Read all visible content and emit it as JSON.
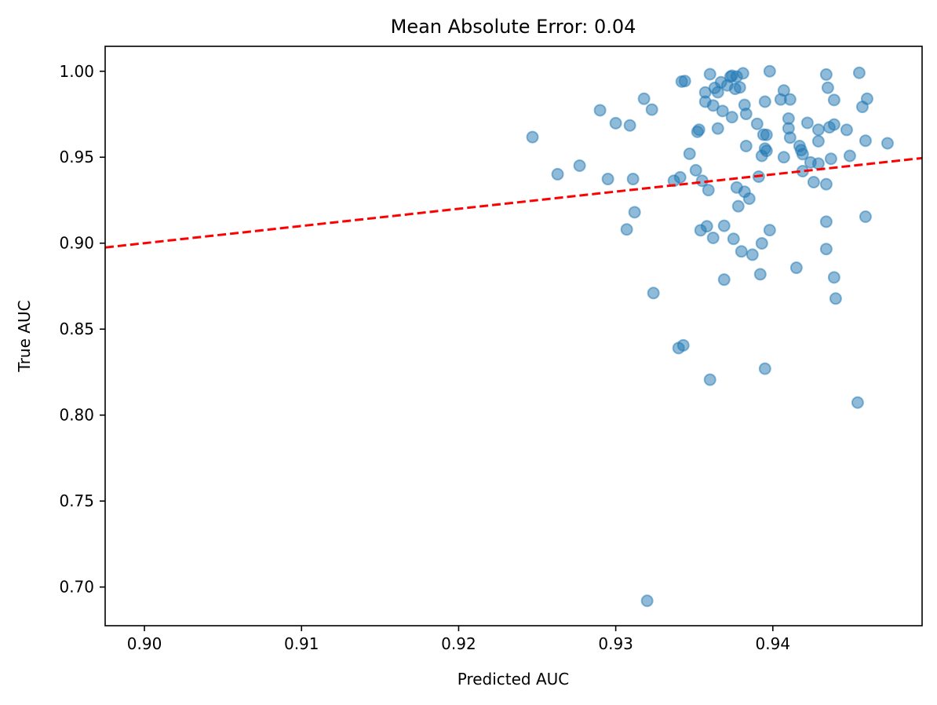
{
  "chart_data": {
    "type": "scatter",
    "title": "Mean Absolute Error: 0.04",
    "xlabel": "Predicted AUC",
    "ylabel": "True AUC",
    "xlim": [
      0.8975,
      0.9495
    ],
    "ylim": [
      0.6775,
      1.0145
    ],
    "xticks": [
      0.9,
      0.91,
      0.92,
      0.93,
      0.94
    ],
    "xtick_labels": [
      "0.90",
      "0.91",
      "0.92",
      "0.93",
      "0.94"
    ],
    "yticks": [
      0.7,
      0.75,
      0.8,
      0.85,
      0.9,
      0.95,
      1.0
    ],
    "ytick_labels": [
      "0.70",
      "0.75",
      "0.80",
      "0.85",
      "0.90",
      "0.95",
      "1.00"
    ],
    "grid": false,
    "colors": {
      "points": "#1f77b4",
      "reference_line": "#ff0000"
    },
    "reference_line": {
      "style": "dashed",
      "x": [
        0.8975,
        0.9495
      ],
      "y": [
        0.8975,
        0.9495
      ]
    },
    "points": [
      {
        "x": 0.9247,
        "y": 0.9617
      },
      {
        "x": 0.9263,
        "y": 0.9401
      },
      {
        "x": 0.9277,
        "y": 0.9451
      },
      {
        "x": 0.929,
        "y": 0.9773
      },
      {
        "x": 0.9295,
        "y": 0.9373
      },
      {
        "x": 0.93,
        "y": 0.9698
      },
      {
        "x": 0.9307,
        "y": 0.908
      },
      {
        "x": 0.9309,
        "y": 0.9685
      },
      {
        "x": 0.9311,
        "y": 0.9373
      },
      {
        "x": 0.9312,
        "y": 0.918
      },
      {
        "x": 0.9318,
        "y": 0.984
      },
      {
        "x": 0.932,
        "y": 0.692
      },
      {
        "x": 0.9323,
        "y": 0.9777
      },
      {
        "x": 0.9324,
        "y": 0.871
      },
      {
        "x": 0.9337,
        "y": 0.9363
      },
      {
        "x": 0.934,
        "y": 0.839
      },
      {
        "x": 0.9341,
        "y": 0.9383
      },
      {
        "x": 0.9342,
        "y": 0.994
      },
      {
        "x": 0.9343,
        "y": 0.8406
      },
      {
        "x": 0.9344,
        "y": 0.9943
      },
      {
        "x": 0.9347,
        "y": 0.952
      },
      {
        "x": 0.9351,
        "y": 0.9424
      },
      {
        "x": 0.9352,
        "y": 0.9648
      },
      {
        "x": 0.9353,
        "y": 0.966
      },
      {
        "x": 0.9354,
        "y": 0.9075
      },
      {
        "x": 0.9355,
        "y": 0.9363
      },
      {
        "x": 0.9357,
        "y": 0.9877
      },
      {
        "x": 0.9357,
        "y": 0.9823
      },
      {
        "x": 0.9358,
        "y": 0.9098
      },
      {
        "x": 0.9359,
        "y": 0.9309
      },
      {
        "x": 0.936,
        "y": 0.9983
      },
      {
        "x": 0.936,
        "y": 0.8206
      },
      {
        "x": 0.9362,
        "y": 0.9801
      },
      {
        "x": 0.9362,
        "y": 0.9031
      },
      {
        "x": 0.9363,
        "y": 0.9903
      },
      {
        "x": 0.9365,
        "y": 0.9878
      },
      {
        "x": 0.9365,
        "y": 0.9667
      },
      {
        "x": 0.9367,
        "y": 0.9936
      },
      {
        "x": 0.9368,
        "y": 0.9769
      },
      {
        "x": 0.9369,
        "y": 0.8788
      },
      {
        "x": 0.9369,
        "y": 0.9101
      },
      {
        "x": 0.9371,
        "y": 0.9918
      },
      {
        "x": 0.9373,
        "y": 0.9968
      },
      {
        "x": 0.9374,
        "y": 0.9733
      },
      {
        "x": 0.9374,
        "y": 0.9974
      },
      {
        "x": 0.9375,
        "y": 0.9025
      },
      {
        "x": 0.9376,
        "y": 0.9898
      },
      {
        "x": 0.9377,
        "y": 0.9969
      },
      {
        "x": 0.9377,
        "y": 0.9324
      },
      {
        "x": 0.9378,
        "y": 0.9215
      },
      {
        "x": 0.9379,
        "y": 0.9906
      },
      {
        "x": 0.938,
        "y": 0.8952
      },
      {
        "x": 0.9381,
        "y": 0.9988
      },
      {
        "x": 0.9382,
        "y": 0.9299
      },
      {
        "x": 0.9382,
        "y": 0.9804
      },
      {
        "x": 0.9383,
        "y": 0.9565
      },
      {
        "x": 0.9383,
        "y": 0.9752
      },
      {
        "x": 0.9385,
        "y": 0.9259
      },
      {
        "x": 0.9387,
        "y": 0.8933
      },
      {
        "x": 0.939,
        "y": 0.9694
      },
      {
        "x": 0.9391,
        "y": 0.9387
      },
      {
        "x": 0.9392,
        "y": 0.8819
      },
      {
        "x": 0.9393,
        "y": 0.8999
      },
      {
        "x": 0.9393,
        "y": 0.9508
      },
      {
        "x": 0.9394,
        "y": 0.9631
      },
      {
        "x": 0.9395,
        "y": 0.9823
      },
      {
        "x": 0.9395,
        "y": 0.955
      },
      {
        "x": 0.9395,
        "y": 0.827
      },
      {
        "x": 0.9396,
        "y": 0.963
      },
      {
        "x": 0.9396,
        "y": 0.9537
      },
      {
        "x": 0.9398,
        "y": 1.0
      },
      {
        "x": 0.9398,
        "y": 0.9076
      },
      {
        "x": 0.9405,
        "y": 0.9836
      },
      {
        "x": 0.9407,
        "y": 0.9888
      },
      {
        "x": 0.9407,
        "y": 0.95
      },
      {
        "x": 0.941,
        "y": 0.9725
      },
      {
        "x": 0.941,
        "y": 0.9668
      },
      {
        "x": 0.9411,
        "y": 0.9836
      },
      {
        "x": 0.9411,
        "y": 0.9614
      },
      {
        "x": 0.9415,
        "y": 0.8857
      },
      {
        "x": 0.9417,
        "y": 0.9565
      },
      {
        "x": 0.9418,
        "y": 0.9541
      },
      {
        "x": 0.9419,
        "y": 0.9518
      },
      {
        "x": 0.9419,
        "y": 0.9419
      },
      {
        "x": 0.9422,
        "y": 0.97
      },
      {
        "x": 0.9424,
        "y": 0.947
      },
      {
        "x": 0.9426,
        "y": 0.9355
      },
      {
        "x": 0.9429,
        "y": 0.9463
      },
      {
        "x": 0.9429,
        "y": 0.966
      },
      {
        "x": 0.9429,
        "y": 0.9593
      },
      {
        "x": 0.9434,
        "y": 0.9981
      },
      {
        "x": 0.9434,
        "y": 0.8966
      },
      {
        "x": 0.9434,
        "y": 0.9125
      },
      {
        "x": 0.9434,
        "y": 0.9343
      },
      {
        "x": 0.9435,
        "y": 0.9904
      },
      {
        "x": 0.9436,
        "y": 0.9674
      },
      {
        "x": 0.9437,
        "y": 0.9491
      },
      {
        "x": 0.9439,
        "y": 0.969
      },
      {
        "x": 0.9439,
        "y": 0.9833
      },
      {
        "x": 0.9439,
        "y": 0.8801
      },
      {
        "x": 0.944,
        "y": 0.8678
      },
      {
        "x": 0.9447,
        "y": 0.9659
      },
      {
        "x": 0.9449,
        "y": 0.9508
      },
      {
        "x": 0.9454,
        "y": 0.8073
      },
      {
        "x": 0.9455,
        "y": 0.9991
      },
      {
        "x": 0.9457,
        "y": 0.9793
      },
      {
        "x": 0.9459,
        "y": 0.9154
      },
      {
        "x": 0.9459,
        "y": 0.9596
      },
      {
        "x": 0.946,
        "y": 0.984
      },
      {
        "x": 0.9473,
        "y": 0.9581
      }
    ]
  }
}
